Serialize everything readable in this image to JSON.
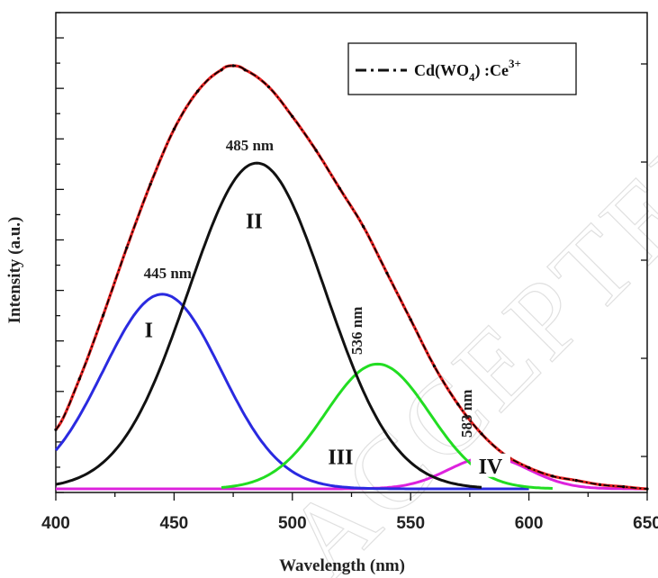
{
  "chart_data": {
    "type": "line",
    "xlabel": "Wavelength (nm)",
    "ylabel": "Intensity (a.u.)",
    "xlim": [
      400,
      650
    ],
    "x_ticks": [
      400,
      450,
      500,
      550,
      600,
      650
    ],
    "legend": {
      "label_main": "Cd(WO",
      "label_sub": "4",
      "label_mid": ") :Ce",
      "label_sup": "3+",
      "placement": "top-right"
    },
    "series": [
      {
        "name": "Cd(WO4):Ce3+",
        "role": "data",
        "color": "#000000",
        "style": "dash-dot",
        "x": [
          400,
          410,
          420,
          430,
          440,
          450,
          460,
          470,
          475,
          480,
          490,
          500,
          510,
          520,
          530,
          540,
          550,
          560,
          570,
          580,
          590,
          600,
          610,
          620,
          630,
          640,
          650
        ],
        "y": [
          0.14,
          0.26,
          0.41,
          0.57,
          0.72,
          0.85,
          0.94,
          0.99,
          1.0,
          0.99,
          0.95,
          0.88,
          0.8,
          0.71,
          0.62,
          0.51,
          0.4,
          0.29,
          0.2,
          0.13,
          0.08,
          0.05,
          0.03,
          0.02,
          0.01,
          0.005,
          0.0
        ]
      },
      {
        "role": "fit",
        "color": "#e32020",
        "x": [
          400,
          410,
          420,
          430,
          440,
          450,
          460,
          470,
          475,
          480,
          490,
          500,
          510,
          520,
          530,
          540,
          550,
          560,
          570,
          580,
          590,
          600,
          610,
          620,
          630,
          640,
          650
        ],
        "y": [
          0.14,
          0.26,
          0.41,
          0.57,
          0.72,
          0.85,
          0.94,
          0.99,
          1.0,
          0.99,
          0.95,
          0.88,
          0.8,
          0.71,
          0.62,
          0.51,
          0.4,
          0.29,
          0.2,
          0.13,
          0.08,
          0.05,
          0.03,
          0.02,
          0.01,
          0.005,
          0.0
        ]
      }
    ],
    "peaks": [
      {
        "label": "I",
        "center": 445,
        "amplitude": 0.46,
        "sigma": 25,
        "color": "#2a2ae0",
        "x_range": [
          400,
          600
        ],
        "peak_label": "445 nm"
      },
      {
        "label": "II",
        "center": 485,
        "amplitude": 0.77,
        "sigma": 29,
        "color": "#111111",
        "x_range": [
          400,
          580
        ],
        "peak_label": "485 nm"
      },
      {
        "label": "III",
        "center": 536,
        "amplitude": 0.295,
        "sigma": 22,
        "color": "#22dd22",
        "x_range": [
          470,
          610
        ],
        "peak_label": "536 nm"
      },
      {
        "label": "IV",
        "center": 583,
        "amplitude": 0.075,
        "sigma": 17,
        "color": "#dd22dd",
        "x_range": [
          400,
          650
        ],
        "peak_label": "583 nm"
      }
    ]
  },
  "watermark_text": "ACCEPTED MANUSCRIPT"
}
